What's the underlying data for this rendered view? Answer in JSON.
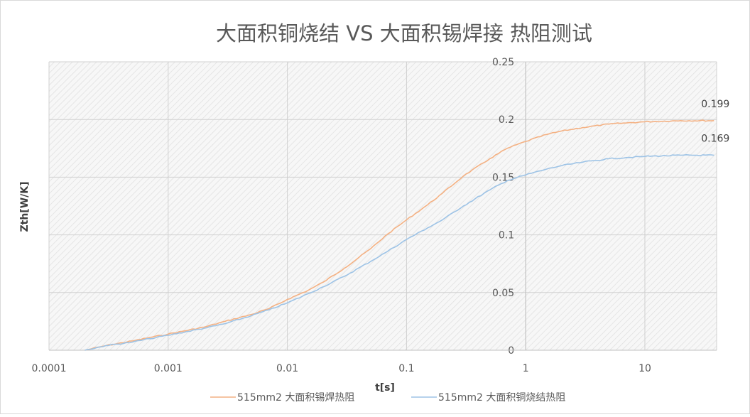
{
  "chart_data": {
    "type": "line",
    "title": "大面积铜烧结 VS 大面积锡焊接 热阻测试",
    "xlabel": "t[s]",
    "ylabel": "Zth[W/K]",
    "x_scale": "log",
    "xlim": [
      0.0001,
      40
    ],
    "ylim": [
      0,
      0.25
    ],
    "x_ticks": [
      {
        "value": 0.0001,
        "label": "0.0001"
      },
      {
        "value": 0.001,
        "label": "0.001"
      },
      {
        "value": 0.01,
        "label": "0.01"
      },
      {
        "value": 0.1,
        "label": "0.1"
      },
      {
        "value": 1,
        "label": "1"
      },
      {
        "value": 10,
        "label": "10"
      }
    ],
    "y_ticks": [
      {
        "value": 0,
        "label": "0"
      },
      {
        "value": 0.05,
        "label": "0.05"
      },
      {
        "value": 0.1,
        "label": "0.1"
      },
      {
        "value": 0.15,
        "label": "0.15"
      },
      {
        "value": 0.2,
        "label": "0.2"
      },
      {
        "value": 0.25,
        "label": "0.25"
      }
    ],
    "grid": true,
    "legend_position": "bottom",
    "plot_background": "hatched light gray",
    "series": [
      {
        "name": "515mm2 大面积锡焊热阻",
        "color": "#f4b183",
        "end_label": "0.199",
        "points": [
          [
            0.0002,
            0
          ],
          [
            0.0003,
            0.004
          ],
          [
            0.0005,
            0.008
          ],
          [
            0.0007,
            0.011
          ],
          [
            0.001,
            0.014
          ],
          [
            0.002,
            0.02
          ],
          [
            0.003,
            0.025
          ],
          [
            0.005,
            0.031
          ],
          [
            0.007,
            0.036
          ],
          [
            0.01,
            0.044
          ],
          [
            0.015,
            0.052
          ],
          [
            0.02,
            0.059
          ],
          [
            0.03,
            0.071
          ],
          [
            0.05,
            0.088
          ],
          [
            0.07,
            0.101
          ],
          [
            0.1,
            0.113
          ],
          [
            0.15,
            0.126
          ],
          [
            0.2,
            0.136
          ],
          [
            0.3,
            0.151
          ],
          [
            0.5,
            0.166
          ],
          [
            0.7,
            0.175
          ],
          [
            1,
            0.181
          ],
          [
            1.5,
            0.187
          ],
          [
            2,
            0.19
          ],
          [
            3,
            0.193
          ],
          [
            5,
            0.196
          ],
          [
            7,
            0.197
          ],
          [
            10,
            0.198
          ],
          [
            20,
            0.199
          ],
          [
            38,
            0.199
          ]
        ]
      },
      {
        "name": "515mm2 大面积铜烧结热阻",
        "color": "#9dc3e6",
        "end_label": "0.169",
        "points": [
          [
            0.0002,
            0
          ],
          [
            0.0003,
            0.004
          ],
          [
            0.0005,
            0.007
          ],
          [
            0.0007,
            0.01
          ],
          [
            0.001,
            0.013
          ],
          [
            0.002,
            0.019
          ],
          [
            0.003,
            0.023
          ],
          [
            0.005,
            0.03
          ],
          [
            0.007,
            0.035
          ],
          [
            0.01,
            0.041
          ],
          [
            0.015,
            0.049
          ],
          [
            0.02,
            0.055
          ],
          [
            0.03,
            0.064
          ],
          [
            0.05,
            0.077
          ],
          [
            0.07,
            0.086
          ],
          [
            0.1,
            0.096
          ],
          [
            0.15,
            0.106
          ],
          [
            0.2,
            0.113
          ],
          [
            0.3,
            0.125
          ],
          [
            0.5,
            0.139
          ],
          [
            0.7,
            0.147
          ],
          [
            1,
            0.152
          ],
          [
            1.5,
            0.157
          ],
          [
            2,
            0.16
          ],
          [
            3,
            0.163
          ],
          [
            5,
            0.166
          ],
          [
            7,
            0.167
          ],
          [
            10,
            0.168
          ],
          [
            20,
            0.169
          ],
          [
            38,
            0.169
          ]
        ]
      }
    ]
  }
}
